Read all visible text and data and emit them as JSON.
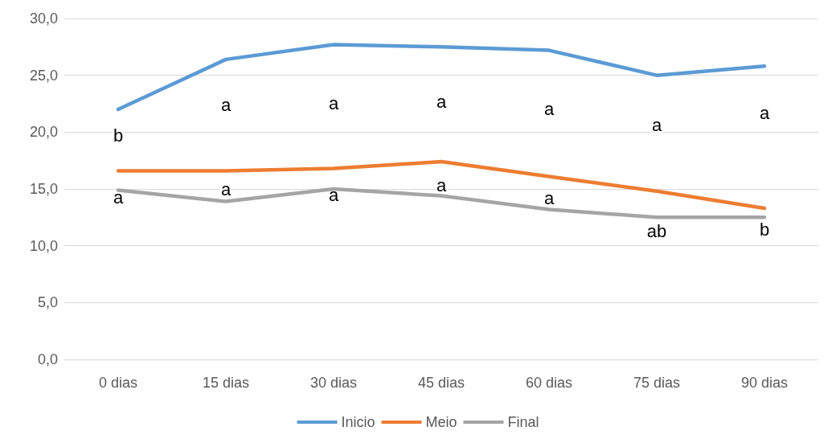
{
  "chart_data": {
    "type": "line",
    "categories": [
      "0 dias",
      "15 dias",
      "30 dias",
      "45 dias",
      "60 dias",
      "75 dias",
      "90 dias"
    ],
    "series": [
      {
        "name": "Inicio",
        "color": "#5b9bd5",
        "values": [
          22.0,
          26.4,
          27.7,
          27.5,
          27.2,
          25.0,
          25.8
        ]
      },
      {
        "name": "Meio",
        "color": "#ed7d31",
        "values": [
          16.6,
          16.6,
          16.8,
          17.4,
          16.1,
          14.8,
          13.3
        ]
      },
      {
        "name": "Final",
        "color": "#a5a5a5",
        "values": [
          14.9,
          13.9,
          15.0,
          14.4,
          13.2,
          12.5,
          12.5
        ]
      }
    ],
    "ylim": [
      0,
      30
    ],
    "yticks": [
      {
        "value": 0,
        "label": "0,0"
      },
      {
        "value": 5,
        "label": "5,0"
      },
      {
        "value": 10,
        "label": "10,0"
      },
      {
        "value": 15,
        "label": "15,0"
      },
      {
        "value": 20,
        "label": "20,0"
      },
      {
        "value": 25,
        "label": "25,0"
      },
      {
        "value": 30,
        "label": "30,0"
      }
    ],
    "grid": "y",
    "legend": "bottom",
    "marker": "none",
    "line_style": "solid",
    "annotations": [
      "b",
      "a",
      "a",
      "a",
      "a",
      "a",
      "a",
      "a",
      "a",
      "a",
      "a",
      "a",
      "ab",
      "b"
    ]
  }
}
